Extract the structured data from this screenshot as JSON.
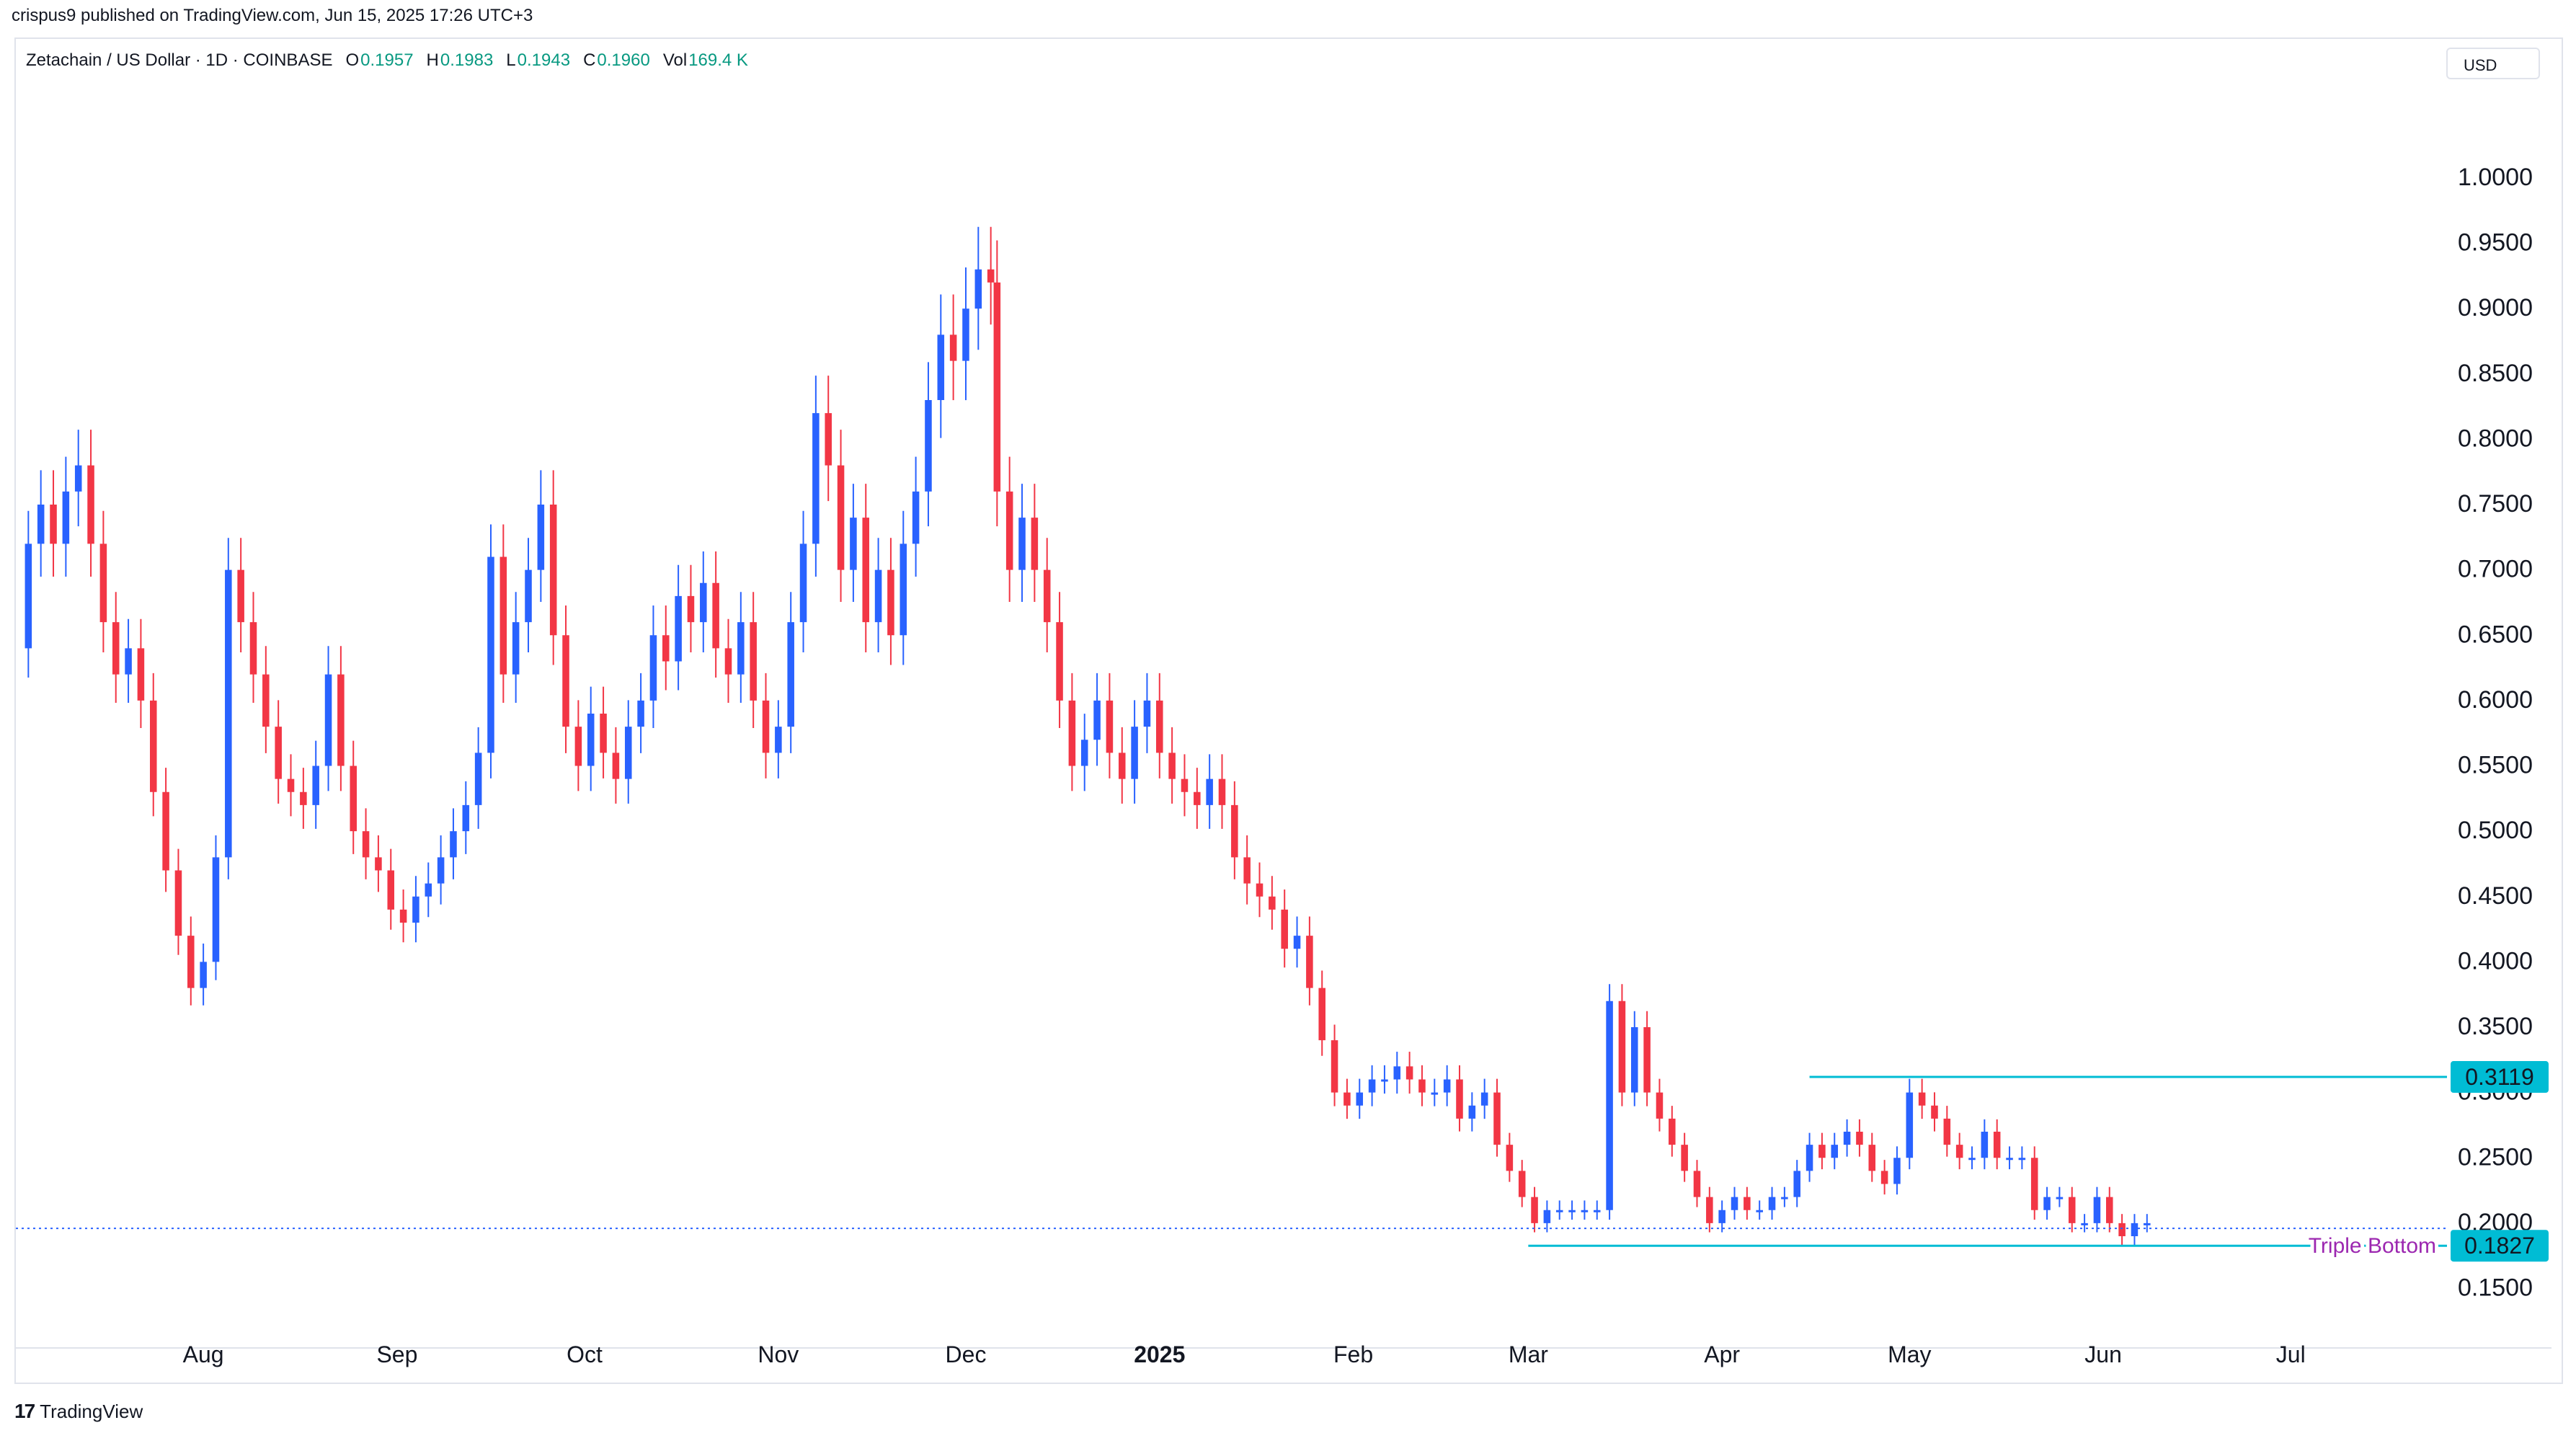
{
  "publisher": "crispus9 published on TradingView.com, Jun 15, 2025 17:26 UTC+3",
  "legend": {
    "symbol": "Zetachain / US Dollar · 1D · COINBASE",
    "o_label": "O",
    "o_value": "0.1957",
    "h_label": "H",
    "h_value": "0.1983",
    "l_label": "L",
    "l_value": "0.1943",
    "c_label": "C",
    "c_value": "0.1960",
    "vol_label": "Vol",
    "vol_value": "169.4 K"
  },
  "currency": "USD",
  "footer": {
    "logo_mark": "17",
    "logo_text": "TradingView"
  },
  "colors": {
    "up": "#2962ff",
    "down": "#f23645",
    "level": "#00bcd4",
    "annotation": "#9c27b0",
    "grid": "#e0e3eb"
  },
  "chart_data": {
    "type": "candlestick",
    "y_ticks": [
      "1.0000",
      "0.9500",
      "0.9000",
      "0.8500",
      "0.8000",
      "0.7500",
      "0.7000",
      "0.6500",
      "0.6000",
      "0.5500",
      "0.5000",
      "0.4500",
      "0.4000",
      "0.3500",
      "0.3000",
      "0.2500",
      "0.2000",
      "0.1500"
    ],
    "ylim": [
      0.11,
      1.07
    ],
    "x_ticks": [
      {
        "label": "Aug",
        "date": "2024-08-01"
      },
      {
        "label": "Sep",
        "date": "2024-09-01"
      },
      {
        "label": "Oct",
        "date": "2024-10-01"
      },
      {
        "label": "Nov",
        "date": "2024-11-01"
      },
      {
        "label": "Dec",
        "date": "2024-12-01"
      },
      {
        "label": "2025",
        "date": "2025-01-01",
        "bold": true
      },
      {
        "label": "Feb",
        "date": "2025-02-01"
      },
      {
        "label": "Mar",
        "date": "2025-03-01"
      },
      {
        "label": "Apr",
        "date": "2025-04-01"
      },
      {
        "label": "May",
        "date": "2025-05-01"
      },
      {
        "label": "Jun",
        "date": "2025-06-01"
      },
      {
        "label": "Jul",
        "date": "2025-07-01"
      }
    ],
    "xlim": [
      "2024-07-02",
      "2025-07-26"
    ],
    "closes": [
      {
        "date": "2024-07-02",
        "close": 0.64
      },
      {
        "date": "2024-07-04",
        "close": 0.72
      },
      {
        "date": "2024-07-06",
        "close": 0.75
      },
      {
        "date": "2024-07-08",
        "close": 0.72
      },
      {
        "date": "2024-07-10",
        "close": 0.76
      },
      {
        "date": "2024-07-12",
        "close": 0.78
      },
      {
        "date": "2024-07-14",
        "close": 0.72
      },
      {
        "date": "2024-07-16",
        "close": 0.66
      },
      {
        "date": "2024-07-18",
        "close": 0.62
      },
      {
        "date": "2024-07-20",
        "close": 0.64
      },
      {
        "date": "2024-07-22",
        "close": 0.6
      },
      {
        "date": "2024-07-24",
        "close": 0.53
      },
      {
        "date": "2024-07-26",
        "close": 0.47
      },
      {
        "date": "2024-07-28",
        "close": 0.42
      },
      {
        "date": "2024-07-30",
        "close": 0.38
      },
      {
        "date": "2024-08-01",
        "close": 0.4
      },
      {
        "date": "2024-08-03",
        "close": 0.48
      },
      {
        "date": "2024-08-05",
        "close": 0.7
      },
      {
        "date": "2024-08-07",
        "close": 0.66
      },
      {
        "date": "2024-08-09",
        "close": 0.62
      },
      {
        "date": "2024-08-11",
        "close": 0.58
      },
      {
        "date": "2024-08-13",
        "close": 0.54
      },
      {
        "date": "2024-08-15",
        "close": 0.53
      },
      {
        "date": "2024-08-17",
        "close": 0.52
      },
      {
        "date": "2024-08-19",
        "close": 0.55
      },
      {
        "date": "2024-08-21",
        "close": 0.62
      },
      {
        "date": "2024-08-23",
        "close": 0.55
      },
      {
        "date": "2024-08-25",
        "close": 0.5
      },
      {
        "date": "2024-08-27",
        "close": 0.48
      },
      {
        "date": "2024-08-29",
        "close": 0.47
      },
      {
        "date": "2024-08-31",
        "close": 0.44
      },
      {
        "date": "2024-09-02",
        "close": 0.43
      },
      {
        "date": "2024-09-04",
        "close": 0.45
      },
      {
        "date": "2024-09-06",
        "close": 0.46
      },
      {
        "date": "2024-09-08",
        "close": 0.48
      },
      {
        "date": "2024-09-10",
        "close": 0.5
      },
      {
        "date": "2024-09-12",
        "close": 0.52
      },
      {
        "date": "2024-09-14",
        "close": 0.56
      },
      {
        "date": "2024-09-16",
        "close": 0.71
      },
      {
        "date": "2024-09-18",
        "close": 0.62
      },
      {
        "date": "2024-09-20",
        "close": 0.66
      },
      {
        "date": "2024-09-22",
        "close": 0.7
      },
      {
        "date": "2024-09-24",
        "close": 0.75
      },
      {
        "date": "2024-09-26",
        "close": 0.65
      },
      {
        "date": "2024-09-28",
        "close": 0.58
      },
      {
        "date": "2024-09-30",
        "close": 0.55
      },
      {
        "date": "2024-10-02",
        "close": 0.59
      },
      {
        "date": "2024-10-04",
        "close": 0.56
      },
      {
        "date": "2024-10-06",
        "close": 0.54
      },
      {
        "date": "2024-10-08",
        "close": 0.58
      },
      {
        "date": "2024-10-10",
        "close": 0.6
      },
      {
        "date": "2024-10-12",
        "close": 0.65
      },
      {
        "date": "2024-10-14",
        "close": 0.63
      },
      {
        "date": "2024-10-16",
        "close": 0.68
      },
      {
        "date": "2024-10-18",
        "close": 0.66
      },
      {
        "date": "2024-10-20",
        "close": 0.69
      },
      {
        "date": "2024-10-22",
        "close": 0.64
      },
      {
        "date": "2024-10-24",
        "close": 0.62
      },
      {
        "date": "2024-10-26",
        "close": 0.66
      },
      {
        "date": "2024-10-28",
        "close": 0.6
      },
      {
        "date": "2024-10-30",
        "close": 0.56
      },
      {
        "date": "2024-11-01",
        "close": 0.58
      },
      {
        "date": "2024-11-03",
        "close": 0.66
      },
      {
        "date": "2024-11-05",
        "close": 0.72
      },
      {
        "date": "2024-11-07",
        "close": 0.82
      },
      {
        "date": "2024-11-09",
        "close": 0.78
      },
      {
        "date": "2024-11-11",
        "close": 0.7
      },
      {
        "date": "2024-11-13",
        "close": 0.74
      },
      {
        "date": "2024-11-15",
        "close": 0.66
      },
      {
        "date": "2024-11-17",
        "close": 0.7
      },
      {
        "date": "2024-11-19",
        "close": 0.65
      },
      {
        "date": "2024-11-21",
        "close": 0.72
      },
      {
        "date": "2024-11-23",
        "close": 0.76
      },
      {
        "date": "2024-11-25",
        "close": 0.83
      },
      {
        "date": "2024-11-27",
        "close": 0.88
      },
      {
        "date": "2024-11-29",
        "close": 0.86
      },
      {
        "date": "2024-12-01",
        "close": 0.9
      },
      {
        "date": "2024-12-03",
        "close": 0.93
      },
      {
        "date": "2024-12-05",
        "close": 0.92
      },
      {
        "date": "2024-12-06",
        "close": 0.76
      },
      {
        "date": "2024-12-08",
        "close": 0.7
      },
      {
        "date": "2024-12-10",
        "close": 0.74
      },
      {
        "date": "2024-12-12",
        "close": 0.7
      },
      {
        "date": "2024-12-14",
        "close": 0.66
      },
      {
        "date": "2024-12-16",
        "close": 0.6
      },
      {
        "date": "2024-12-18",
        "close": 0.55
      },
      {
        "date": "2024-12-20",
        "close": 0.57
      },
      {
        "date": "2024-12-22",
        "close": 0.6
      },
      {
        "date": "2024-12-24",
        "close": 0.56
      },
      {
        "date": "2024-12-26",
        "close": 0.54
      },
      {
        "date": "2024-12-28",
        "close": 0.58
      },
      {
        "date": "2024-12-30",
        "close": 0.6
      },
      {
        "date": "2025-01-01",
        "close": 0.56
      },
      {
        "date": "2025-01-03",
        "close": 0.54
      },
      {
        "date": "2025-01-05",
        "close": 0.53
      },
      {
        "date": "2025-01-07",
        "close": 0.52
      },
      {
        "date": "2025-01-09",
        "close": 0.54
      },
      {
        "date": "2025-01-11",
        "close": 0.52
      },
      {
        "date": "2025-01-13",
        "close": 0.48
      },
      {
        "date": "2025-01-15",
        "close": 0.46
      },
      {
        "date": "2025-01-17",
        "close": 0.45
      },
      {
        "date": "2025-01-19",
        "close": 0.44
      },
      {
        "date": "2025-01-21",
        "close": 0.41
      },
      {
        "date": "2025-01-23",
        "close": 0.42
      },
      {
        "date": "2025-01-25",
        "close": 0.38
      },
      {
        "date": "2025-01-27",
        "close": 0.34
      },
      {
        "date": "2025-01-29",
        "close": 0.3
      },
      {
        "date": "2025-01-31",
        "close": 0.29
      },
      {
        "date": "2025-02-02",
        "close": 0.3
      },
      {
        "date": "2025-02-04",
        "close": 0.31
      },
      {
        "date": "2025-02-06",
        "close": 0.31
      },
      {
        "date": "2025-02-08",
        "close": 0.32
      },
      {
        "date": "2025-02-10",
        "close": 0.31
      },
      {
        "date": "2025-02-12",
        "close": 0.3
      },
      {
        "date": "2025-02-14",
        "close": 0.3
      },
      {
        "date": "2025-02-16",
        "close": 0.31
      },
      {
        "date": "2025-02-18",
        "close": 0.28
      },
      {
        "date": "2025-02-20",
        "close": 0.29
      },
      {
        "date": "2025-02-22",
        "close": 0.3
      },
      {
        "date": "2025-02-24",
        "close": 0.26
      },
      {
        "date": "2025-02-26",
        "close": 0.24
      },
      {
        "date": "2025-02-28",
        "close": 0.22
      },
      {
        "date": "2025-03-02",
        "close": 0.2
      },
      {
        "date": "2025-03-04",
        "close": 0.21
      },
      {
        "date": "2025-03-06",
        "close": 0.21
      },
      {
        "date": "2025-03-08",
        "close": 0.21
      },
      {
        "date": "2025-03-10",
        "close": 0.21
      },
      {
        "date": "2025-03-12",
        "close": 0.21
      },
      {
        "date": "2025-03-14",
        "close": 0.37
      },
      {
        "date": "2025-03-16",
        "close": 0.3
      },
      {
        "date": "2025-03-18",
        "close": 0.35
      },
      {
        "date": "2025-03-20",
        "close": 0.3
      },
      {
        "date": "2025-03-22",
        "close": 0.28
      },
      {
        "date": "2025-03-24",
        "close": 0.26
      },
      {
        "date": "2025-03-26",
        "close": 0.24
      },
      {
        "date": "2025-03-28",
        "close": 0.22
      },
      {
        "date": "2025-03-30",
        "close": 0.2
      },
      {
        "date": "2025-04-01",
        "close": 0.21
      },
      {
        "date": "2025-04-03",
        "close": 0.22
      },
      {
        "date": "2025-04-05",
        "close": 0.21
      },
      {
        "date": "2025-04-07",
        "close": 0.21
      },
      {
        "date": "2025-04-09",
        "close": 0.22
      },
      {
        "date": "2025-04-11",
        "close": 0.22
      },
      {
        "date": "2025-04-13",
        "close": 0.24
      },
      {
        "date": "2025-04-15",
        "close": 0.26
      },
      {
        "date": "2025-04-17",
        "close": 0.25
      },
      {
        "date": "2025-04-19",
        "close": 0.26
      },
      {
        "date": "2025-04-21",
        "close": 0.27
      },
      {
        "date": "2025-04-23",
        "close": 0.26
      },
      {
        "date": "2025-04-25",
        "close": 0.24
      },
      {
        "date": "2025-04-27",
        "close": 0.23
      },
      {
        "date": "2025-04-29",
        "close": 0.25
      },
      {
        "date": "2025-05-01",
        "close": 0.3
      },
      {
        "date": "2025-05-03",
        "close": 0.29
      },
      {
        "date": "2025-05-05",
        "close": 0.28
      },
      {
        "date": "2025-05-07",
        "close": 0.26
      },
      {
        "date": "2025-05-09",
        "close": 0.25
      },
      {
        "date": "2025-05-11",
        "close": 0.25
      },
      {
        "date": "2025-05-13",
        "close": 0.27
      },
      {
        "date": "2025-05-15",
        "close": 0.25
      },
      {
        "date": "2025-05-17",
        "close": 0.25
      },
      {
        "date": "2025-05-19",
        "close": 0.25
      },
      {
        "date": "2025-05-21",
        "close": 0.21
      },
      {
        "date": "2025-05-23",
        "close": 0.22
      },
      {
        "date": "2025-05-25",
        "close": 0.22
      },
      {
        "date": "2025-05-27",
        "close": 0.2
      },
      {
        "date": "2025-05-29",
        "close": 0.2
      },
      {
        "date": "2025-05-31",
        "close": 0.22
      },
      {
        "date": "2025-06-02",
        "close": 0.2
      },
      {
        "date": "2025-06-04",
        "close": 0.19
      },
      {
        "date": "2025-06-06",
        "close": 0.2
      },
      {
        "date": "2025-06-08",
        "close": 0.2
      }
    ],
    "levels": [
      {
        "label": "0.3119",
        "value": 0.3119,
        "from": "2025-04-15"
      },
      {
        "label": "0.1827",
        "value": 0.1827,
        "from": "2025-03-01",
        "annotation": "Triple Bottom"
      }
    ],
    "current_price": 0.196
  }
}
